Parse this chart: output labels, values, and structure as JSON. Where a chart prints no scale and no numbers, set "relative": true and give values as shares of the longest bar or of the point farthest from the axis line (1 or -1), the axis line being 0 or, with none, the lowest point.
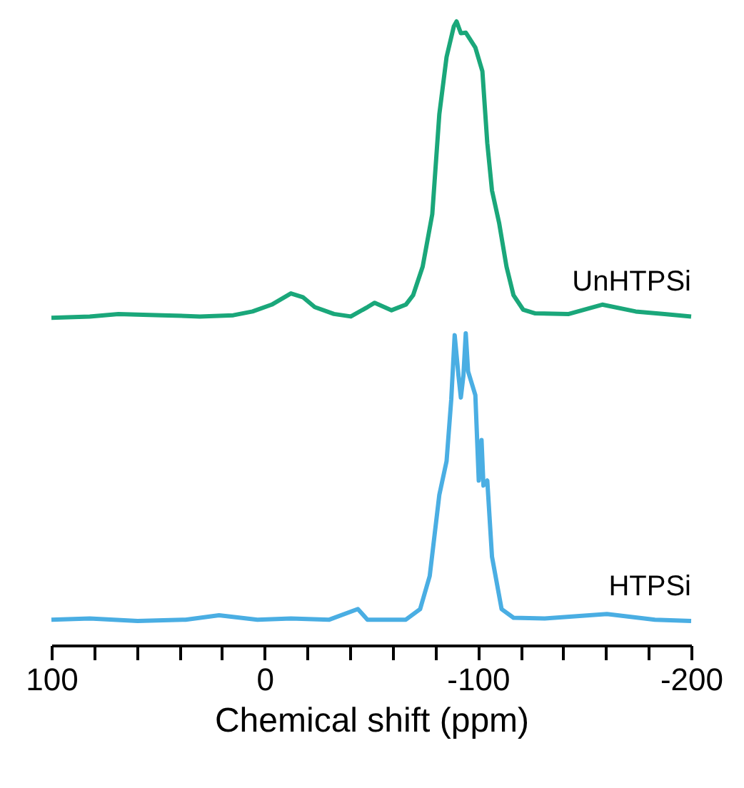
{
  "chart_data": {
    "type": "line",
    "relative": true,
    "xlabel": "Chemical shift (ppm)",
    "xlim": [
      100,
      -200
    ],
    "xticks": [
      100,
      {
        "value": 80,
        "label": null
      },
      {
        "value": 60,
        "label": null
      },
      {
        "value": 40,
        "label": null
      },
      {
        "value": 20,
        "label": null
      },
      0,
      {
        "value": -20,
        "label": null
      },
      {
        "value": -40,
        "label": null
      },
      {
        "value": -60,
        "label": null
      },
      {
        "value": -80,
        "label": null
      },
      -100,
      {
        "value": -120,
        "label": null
      },
      {
        "value": -140,
        "label": null
      },
      {
        "value": -160,
        "label": null
      },
      {
        "value": -180,
        "label": null
      },
      -200
    ],
    "tick_labels": "x",
    "grid": false,
    "marker": "none",
    "line_style": "solid",
    "series": [
      {
        "name": "UnHTPSi",
        "color": "#1aa77a",
        "x": [
          100.0,
          82.0,
          68.6,
          48.3,
          30.4,
          14.7,
          5.7,
          -3.3,
          -12.3,
          -17.9,
          -23.5,
          -32.5,
          -40.4,
          -48.2,
          -51.6,
          -59.5,
          -66.2,
          -69.6,
          -74.1,
          -78.6,
          -81.9,
          -85.3,
          -88.7,
          -90.0,
          -92.0,
          -94.3,
          -98.8,
          -102.1,
          -104.4,
          -106.6,
          -110.0,
          -113.4,
          -116.7,
          -121.2,
          -126.9,
          -142.6,
          -158.3,
          -174.0,
          -187.5,
          -200.0
        ],
        "values": [
          0.525,
          0.527,
          0.531,
          0.529,
          0.527,
          0.529,
          0.535,
          0.546,
          0.564,
          0.558,
          0.542,
          0.531,
          0.527,
          0.542,
          0.549,
          0.537,
          0.546,
          0.561,
          0.607,
          0.691,
          0.851,
          0.943,
          0.992,
          1.0,
          0.981,
          0.982,
          0.958,
          0.92,
          0.805,
          0.729,
          0.676,
          0.607,
          0.561,
          0.538,
          0.532,
          0.531,
          0.546,
          0.535,
          0.531,
          0.527
        ]
      },
      {
        "name": "HTPSi",
        "color": "#4aaee3",
        "x": [
          100.0,
          82.0,
          59.6,
          37.1,
          21.4,
          3.4,
          -12.3,
          -30.3,
          -43.7,
          -48.2,
          -66.2,
          -72.9,
          -77.4,
          -81.9,
          -85.3,
          -87.5,
          -89.1,
          -90.9,
          -92.0,
          -93.2,
          -94.3,
          -95.4,
          -98.8,
          -100.4,
          -101.7,
          -102.6,
          -104.4,
          -106.6,
          -111.1,
          -116.7,
          -131.3,
          -160.5,
          -183.0,
          -200.0
        ],
        "values": [
          0.041,
          0.043,
          0.039,
          0.041,
          0.048,
          0.041,
          0.043,
          0.041,
          0.058,
          0.041,
          0.041,
          0.058,
          0.111,
          0.241,
          0.295,
          0.394,
          0.497,
          0.432,
          0.397,
          0.432,
          0.5,
          0.439,
          0.401,
          0.264,
          0.329,
          0.256,
          0.264,
          0.142,
          0.058,
          0.044,
          0.043,
          0.05,
          0.041,
          0.039
        ]
      }
    ]
  }
}
